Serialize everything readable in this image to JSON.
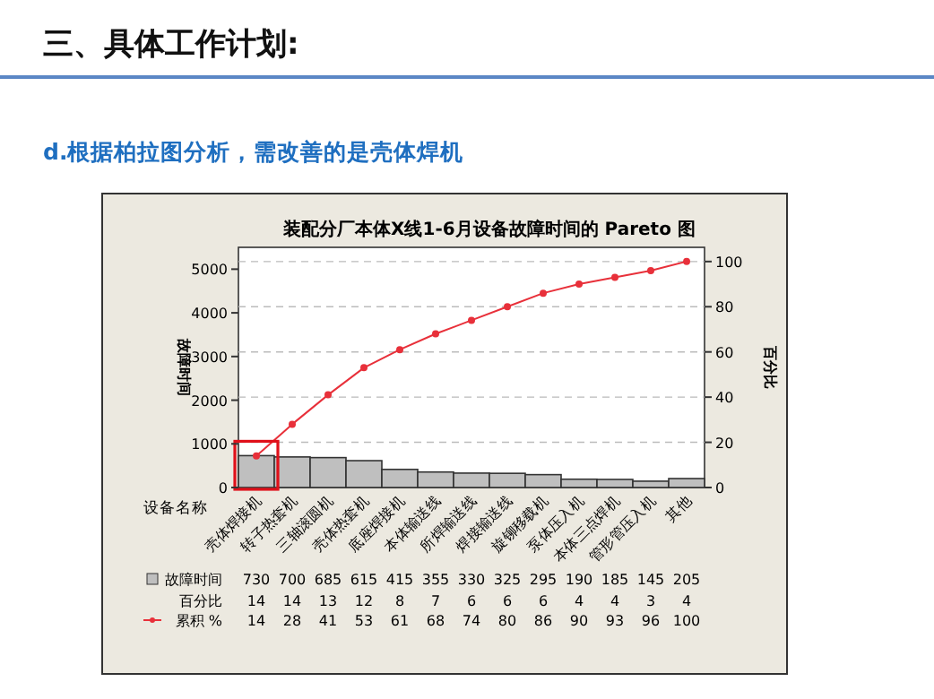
{
  "chart_data": {
    "type": "bar",
    "title": "装配分厂本体X线1-6月设备故障时间的 Pareto 图",
    "xlabel": "设备名称",
    "ylabel": "故障时间",
    "y2label": "百分比",
    "annotations": [
      "三、具体工作计划:",
      "d.根据柏拉图分析，需改善的是壳体焊机",
      "百分比",
      "14",
      "14",
      "13",
      "12",
      "8",
      "7",
      "6",
      "6",
      "6",
      "4",
      "4",
      "3",
      "4"
    ],
    "categories": [
      "壳体焊接机",
      "转子热套机",
      "三轴滚圆机",
      "壳体热套机",
      "底座焊接机",
      "本体输送线",
      "所焊输送线",
      "焊接输送线",
      "旋铆移载机",
      "泵体压入机",
      "本体三点焊机",
      "管形管压入机",
      "其他"
    ],
    "series": [
      {
        "name": "故障时间",
        "color": "#bfbfbf",
        "values": [
          730,
          700,
          685,
          615,
          415,
          355,
          330,
          325,
          295,
          190,
          185,
          145,
          205
        ]
      },
      {
        "name": "累积 %",
        "type": "line",
        "axis": "y2",
        "color": "#e8303a",
        "values": [
          14,
          28,
          41,
          53,
          61,
          68,
          74,
          80,
          86,
          90,
          93,
          96,
          100
        ]
      }
    ],
    "data_labels": true,
    "legend": "bottom left",
    "marker": "circle",
    "line_style": "solid",
    "grid": true,
    "ylim": [
      0,
      5500
    ],
    "yticks": [
      0,
      1000,
      2000,
      3000,
      4000,
      5000
    ],
    "y2lim": [
      0,
      106.28
    ],
    "y2ticks": [
      0,
      20,
      40,
      60,
      80,
      100
    ]
  }
}
